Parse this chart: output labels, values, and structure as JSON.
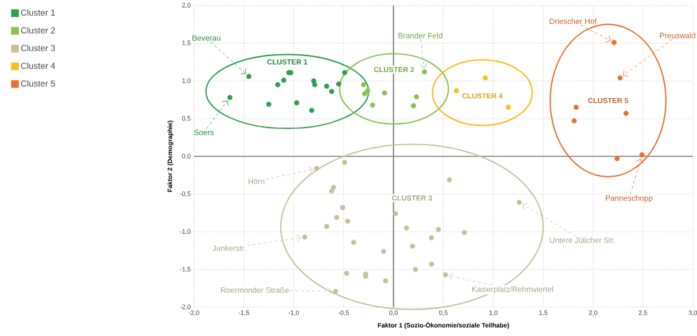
{
  "chart_data": {
    "type": "scatter",
    "xlabel": "Faktor 1 (Sozio-Ökonomie/soziale Teilhabe)",
    "ylabel": "Faktor 2 (Demographie)",
    "xlim": [
      -2,
      3
    ],
    "ylim": [
      -2,
      2
    ],
    "xticks": [
      {
        "value": -2,
        "label": "-2,0"
      },
      {
        "value": -1.5,
        "label": "-1,5"
      },
      {
        "value": -1,
        "label": "-1,0"
      },
      {
        "value": -0.5,
        "label": "-0,5"
      },
      {
        "value": 0,
        "label": "0,0"
      },
      {
        "value": 0.5,
        "label": "0,5"
      },
      {
        "value": 1,
        "label": "1,0"
      },
      {
        "value": 1.5,
        "label": "1,5"
      },
      {
        "value": 2,
        "label": "2,0"
      },
      {
        "value": 2.5,
        "label": "2,5"
      },
      {
        "value": 3,
        "label": "3,0"
      }
    ],
    "yticks": [
      {
        "value": -2,
        "label": "-2,0"
      },
      {
        "value": -1.5,
        "label": "-1,5"
      },
      {
        "value": -1,
        "label": "-1,0"
      },
      {
        "value": -0.5,
        "label": "-0,5"
      },
      {
        "value": 0,
        "label": "0,0"
      },
      {
        "value": 0.5,
        "label": "0,5"
      },
      {
        "value": 1,
        "label": "1,0"
      },
      {
        "value": 1.5,
        "label": "1,5"
      },
      {
        "value": 2,
        "label": "2,0"
      }
    ],
    "grid": true,
    "legend": "left",
    "marker": "circle",
    "series": [
      {
        "name": "Cluster 1",
        "color": "#2e9e4f",
        "x": [
          -1.45,
          -1.64,
          -1.25,
          -1.16,
          -1.1,
          -1.05,
          -1.03,
          -0.97,
          -0.82,
          -0.8,
          -0.79,
          -0.67,
          -0.62,
          -0.55,
          -0.49
        ],
        "values": [
          1.06,
          0.78,
          0.69,
          0.95,
          1.01,
          1.11,
          1.11,
          0.71,
          0.61,
          1.0,
          0.95,
          0.93,
          0.86,
          0.96,
          1.11
        ]
      },
      {
        "name": "Cluster 2",
        "color": "#8dc04f",
        "x": [
          -0.3,
          -0.26,
          -0.29,
          -0.21,
          -0.09,
          0.31,
          0.23,
          0.2
        ],
        "values": [
          0.95,
          0.87,
          0.83,
          0.68,
          0.84,
          1.12,
          0.79,
          0.67
        ]
      },
      {
        "name": "Cluster 3",
        "color": "#c8bf9a",
        "x": [
          -0.49,
          -0.77,
          -0.6,
          -0.62,
          -0.51,
          -0.57,
          -0.46,
          -0.67,
          -0.89,
          -0.4,
          -0.1,
          -0.47,
          -0.28,
          -0.28,
          -0.08,
          -0.58,
          0.02,
          0.13,
          0.19,
          0.22,
          0.56,
          1.26,
          0.45,
          0.71,
          0.38,
          0.38,
          0.52
        ],
        "values": [
          -0.08,
          -0.16,
          -0.41,
          -0.46,
          -0.68,
          -0.81,
          -0.86,
          -0.93,
          -1.07,
          -1.14,
          -1.26,
          -1.55,
          -1.56,
          -1.59,
          -1.65,
          -1.79,
          -0.76,
          -0.95,
          -1.19,
          -1.5,
          -0.31,
          -0.61,
          -0.97,
          -1.01,
          -1.08,
          -1.43,
          -1.57
        ]
      },
      {
        "name": "Cluster 4",
        "color": "#fbbd1d",
        "x": [
          0.63,
          0.92,
          1.15
        ],
        "values": [
          0.87,
          1.04,
          0.65
        ]
      },
      {
        "name": "Cluster 5",
        "color": "#ec7030",
        "x": [
          2.21,
          2.27,
          1.83,
          1.81,
          2.33,
          2.24,
          2.49
        ],
        "values": [
          1.51,
          1.04,
          0.65,
          0.47,
          0.57,
          -0.03,
          0.02
        ]
      }
    ],
    "annotations": [
      "CLUSTER 1",
      "CLUSTER 2",
      "CLUSTER 3",
      "CLUSTER 4",
      "CLUSTER 5",
      {
        "text": "Beverau",
        "x": -1.45,
        "y": 1.06
      },
      {
        "text": "Soers",
        "x": -1.64,
        "y": 0.78
      },
      {
        "text": "Brander Feld",
        "x": 0.31,
        "y": 1.12
      },
      {
        "text": "Driescher Hof",
        "x": 2.21,
        "y": 1.51
      },
      {
        "text": "Preuswald",
        "x": 2.27,
        "y": 1.04
      },
      {
        "text": "Panneschopp",
        "x": 2.49,
        "y": 0.02
      },
      {
        "text": "Hörn",
        "x": -0.77,
        "y": -0.16
      },
      {
        "text": "Junkerstr.",
        "x": -0.89,
        "y": -1.07
      },
      {
        "text": "Roermonder Straße",
        "x": -0.58,
        "y": -1.79
      },
      {
        "text": "Untere Jülicher Str.",
        "x": 1.26,
        "y": -0.61
      },
      {
        "text": "Kaiserplatz/Rehmviertel",
        "x": 0.52,
        "y": -1.57
      }
    ]
  }
}
